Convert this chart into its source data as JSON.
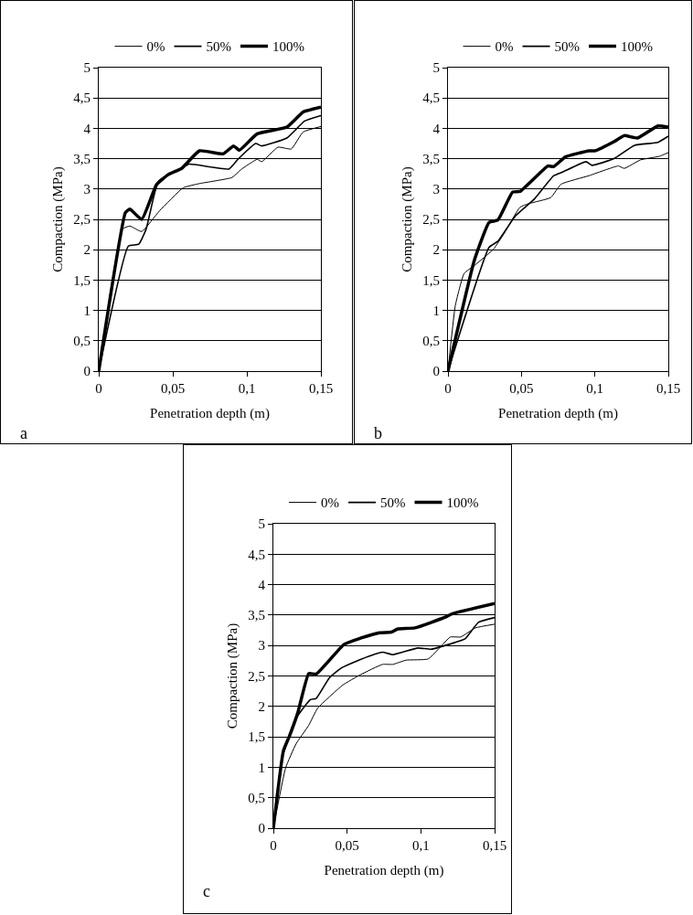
{
  "chart_data": [
    {
      "type": "line",
      "xlabel": "Penetration depth (m)",
      "ylabel": "Compaction (MPa)",
      "annotations": [
        "a"
      ],
      "legend": "top",
      "grid": "y",
      "marker": "none",
      "line_style": "solid",
      "xlim": [
        0,
        0.15
      ],
      "xticks": [
        {
          "value": 0,
          "label": "0"
        },
        {
          "value": 0.05,
          "label": "0,05"
        },
        {
          "value": 0.1,
          "label": "0,1"
        },
        {
          "value": 0.15,
          "label": "0,15"
        }
      ],
      "ylim": [
        0,
        5
      ],
      "yticks": [
        0,
        {
          "value": 0.5,
          "label": "0,5"
        },
        1,
        {
          "value": 1.5,
          "label": "1,5"
        },
        2,
        {
          "value": 2.5,
          "label": "2,5"
        },
        3,
        {
          "value": 3.5,
          "label": "3,5"
        },
        4,
        {
          "value": 4.5,
          "label": "4,5"
        },
        5
      ],
      "series": [
        {
          "name": "0%",
          "color": "#000000",
          "x": [
            0,
            0.016,
            0.021,
            0.029,
            0.041,
            0.057,
            0.068,
            0.09,
            0.096,
            0.107,
            0.11,
            0.121,
            0.13,
            0.138,
            0.15
          ],
          "values": [
            0,
            2.34,
            2.39,
            2.3,
            2.64,
            3.02,
            3.09,
            3.19,
            3.32,
            3.49,
            3.45,
            3.69,
            3.66,
            3.94,
            4.03
          ]
        },
        {
          "name": "50%",
          "color": "#000000",
          "x": [
            0,
            0.02,
            0.027,
            0.032,
            0.04,
            0.047,
            0.056,
            0.061,
            0.088,
            0.094,
            0.106,
            0.11,
            0.127,
            0.139,
            0.15
          ],
          "values": [
            0,
            2.06,
            2.09,
            2.34,
            3.12,
            3.24,
            3.34,
            3.41,
            3.33,
            3.49,
            3.75,
            3.71,
            3.84,
            4.12,
            4.21
          ]
        },
        {
          "name": "100%",
          "color": "#000000",
          "x": [
            0,
            0.018,
            0.021,
            0.029,
            0.039,
            0.047,
            0.056,
            0.068,
            0.084,
            0.091,
            0.095,
            0.107,
            0.127,
            0.138,
            0.15
          ],
          "values": [
            0,
            2.61,
            2.67,
            2.5,
            3.07,
            3.24,
            3.34,
            3.63,
            3.58,
            3.71,
            3.64,
            3.91,
            4.02,
            4.27,
            4.35
          ]
        }
      ]
    },
    {
      "type": "line",
      "xlabel": "Penetration depth (m)",
      "ylabel": "Compaction (MPa)",
      "annotations": [
        "b"
      ],
      "legend": "top",
      "grid": "y",
      "marker": "none",
      "line_style": "solid",
      "xlim": [
        0,
        0.15
      ],
      "xticks": [
        {
          "value": 0,
          "label": "0"
        },
        {
          "value": 0.05,
          "label": "0,05"
        },
        {
          "value": 0.1,
          "label": "0,1"
        },
        {
          "value": 0.15,
          "label": "0,15"
        }
      ],
      "ylim": [
        0,
        5
      ],
      "yticks": [
        0,
        {
          "value": 0.5,
          "label": "0,5"
        },
        1,
        {
          "value": 1.5,
          "label": "1,5"
        },
        2,
        {
          "value": 2.5,
          "label": "2,5"
        },
        3,
        {
          "value": 3.5,
          "label": "3,5"
        },
        4,
        {
          "value": 4.5,
          "label": "4,5"
        },
        5
      ],
      "series": [
        {
          "name": "0%",
          "color": "#000000",
          "x": [
            0,
            0.005,
            0.011,
            0.018,
            0.031,
            0.038,
            0.049,
            0.055,
            0.07,
            0.077,
            0.096,
            0.116,
            0.12,
            0.131,
            0.144,
            0.15
          ],
          "values": [
            0,
            1.08,
            1.61,
            1.74,
            2.01,
            2.26,
            2.7,
            2.76,
            2.86,
            3.08,
            3.22,
            3.38,
            3.34,
            3.48,
            3.54,
            3.6
          ]
        },
        {
          "name": "50%",
          "color": "#000000",
          "x": [
            0,
            0.028,
            0.034,
            0.046,
            0.059,
            0.072,
            0.078,
            0.094,
            0.098,
            0.113,
            0.127,
            0.143,
            0.15
          ],
          "values": [
            0,
            2.04,
            2.14,
            2.56,
            2.84,
            3.22,
            3.28,
            3.45,
            3.39,
            3.5,
            3.72,
            3.77,
            3.87
          ]
        },
        {
          "name": "100%",
          "color": "#000000",
          "x": [
            0,
            0.018,
            0.028,
            0.034,
            0.044,
            0.049,
            0.068,
            0.072,
            0.08,
            0.096,
            0.1,
            0.113,
            0.12,
            0.129,
            0.143,
            0.15
          ],
          "values": [
            0,
            1.83,
            2.45,
            2.49,
            2.95,
            2.96,
            3.38,
            3.37,
            3.53,
            3.63,
            3.63,
            3.78,
            3.88,
            3.84,
            4.04,
            4.02
          ]
        }
      ]
    },
    {
      "type": "line",
      "xlabel": "Penetration depth (m)",
      "ylabel": "Compaction (MPa)",
      "annotations": [
        "c"
      ],
      "legend": "top",
      "grid": "y",
      "marker": "none",
      "line_style": "solid",
      "xlim": [
        0,
        0.15
      ],
      "xticks": [
        {
          "value": 0,
          "label": "0"
        },
        {
          "value": 0.05,
          "label": "0,05"
        },
        {
          "value": 0.1,
          "label": "0,1"
        },
        {
          "value": 0.15,
          "label": "0,15"
        }
      ],
      "ylim": [
        0,
        5
      ],
      "yticks": [
        0,
        {
          "value": 0.5,
          "label": "0,5"
        },
        1,
        {
          "value": 1.5,
          "label": "1,5"
        },
        2,
        {
          "value": 2.5,
          "label": "2,5"
        },
        3,
        {
          "value": 3.5,
          "label": "3,5"
        },
        4,
        {
          "value": 4.5,
          "label": "4,5"
        },
        5
      ],
      "series": [
        {
          "name": "0%",
          "color": "#000000",
          "x": [
            0,
            0.0083,
            0.0155,
            0.024,
            0.03,
            0.047,
            0.059,
            0.074,
            0.081,
            0.09,
            0.105,
            0.12,
            0.127,
            0.137,
            0.15
          ],
          "values": [
            0,
            0.99,
            1.39,
            1.69,
            1.97,
            2.35,
            2.52,
            2.69,
            2.69,
            2.76,
            2.78,
            3.14,
            3.14,
            3.29,
            3.35
          ]
        },
        {
          "name": "50%",
          "color": "#000000",
          "x": [
            0,
            0.0058,
            0.015,
            0.025,
            0.029,
            0.038,
            0.046,
            0.059,
            0.074,
            0.081,
            0.098,
            0.107,
            0.123,
            0.13,
            0.139,
            0.15
          ],
          "values": [
            0,
            1.14,
            1.79,
            2.11,
            2.13,
            2.47,
            2.63,
            2.77,
            2.89,
            2.85,
            2.96,
            2.94,
            3.05,
            3.11,
            3.38,
            3.46
          ]
        },
        {
          "name": "100%",
          "color": "#000000",
          "x": [
            0,
            0.0068,
            0.011,
            0.0165,
            0.024,
            0.029,
            0.048,
            0.059,
            0.072,
            0.08,
            0.084,
            0.096,
            0.117,
            0.121,
            0.15
          ],
          "values": [
            0,
            1.27,
            1.52,
            1.89,
            2.54,
            2.53,
            3.02,
            3.12,
            3.21,
            3.22,
            3.27,
            3.29,
            3.47,
            3.52,
            3.69
          ]
        }
      ]
    }
  ]
}
